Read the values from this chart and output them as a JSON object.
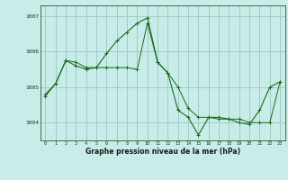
{
  "title": "Graphe pression niveau de la mer (hPa)",
  "bg_color": "#c8ece8",
  "grid_color": "#a0ccc8",
  "line_color": "#1a6b1a",
  "x_ticks": [
    0,
    1,
    2,
    3,
    4,
    5,
    6,
    7,
    8,
    9,
    10,
    11,
    12,
    13,
    14,
    15,
    16,
    17,
    18,
    19,
    20,
    21,
    22,
    23
  ],
  "y_ticks": [
    1004,
    1005,
    1006,
    1007
  ],
  "ylim": [
    1003.5,
    1007.3
  ],
  "xlim": [
    -0.5,
    23.5
  ],
  "series1_x": [
    0,
    1,
    2,
    3,
    4,
    5,
    6,
    7,
    8,
    9,
    10,
    11,
    12,
    13,
    14,
    15,
    16,
    17,
    18,
    19,
    20,
    21,
    22,
    23
  ],
  "series1_y": [
    1004.8,
    1005.1,
    1005.75,
    1005.7,
    1005.55,
    1005.55,
    1005.55,
    1005.55,
    1005.55,
    1005.5,
    1006.8,
    1005.7,
    1005.4,
    1005.0,
    1004.4,
    1004.15,
    1004.15,
    1004.1,
    1004.1,
    1004.1,
    1004.0,
    1004.0,
    1004.0,
    1005.15
  ],
  "series2_x": [
    0,
    1,
    2,
    3,
    4,
    5,
    6,
    7,
    8,
    9,
    10,
    11,
    12,
    13,
    14,
    15,
    16,
    17,
    18,
    19,
    20,
    21,
    22,
    23
  ],
  "series2_y": [
    1004.75,
    1005.1,
    1005.75,
    1005.6,
    1005.5,
    1005.55,
    1005.95,
    1006.3,
    1006.55,
    1006.8,
    1006.95,
    1005.7,
    1005.4,
    1004.35,
    1004.15,
    1003.65,
    1004.15,
    1004.15,
    1004.1,
    1004.0,
    1003.95,
    1004.35,
    1005.0,
    1005.15
  ]
}
